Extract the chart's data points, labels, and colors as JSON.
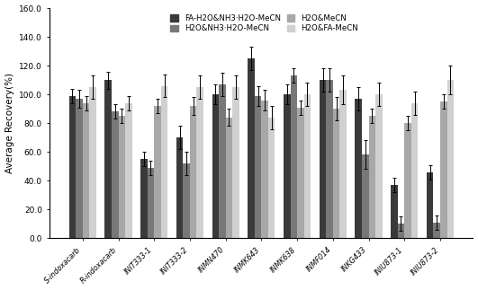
{
  "categories": [
    "S-indoxacarb",
    "R-indoxacarb",
    "INIT333-1",
    "INIT333-2",
    "INMN470",
    "INMK643",
    "INMK638",
    "INMF014",
    "INKG433",
    "INIU873-1",
    "INIU873-2"
  ],
  "series_labels": [
    "FA-H2O&NH3·H2O-MeCN",
    "H2O&NH3·H2O-MeCN",
    "H2O&MeCN",
    "H2O&FA-MeCN"
  ],
  "colors": [
    "#3a3a3a",
    "#787878",
    "#a8a8a8",
    "#d0d0d0"
  ],
  "bar_values": [
    [
      99,
      110,
      55,
      70,
      100,
      125,
      100,
      110,
      97,
      37,
      46
    ],
    [
      97,
      88,
      49,
      52,
      107,
      99,
      113,
      110,
      58,
      10,
      11
    ],
    [
      94,
      85,
      92,
      92,
      84,
      96,
      91,
      90,
      85,
      80,
      95
    ],
    [
      105,
      94,
      106,
      105,
      105,
      84,
      100,
      103,
      100,
      94,
      110
    ]
  ],
  "error_values": [
    [
      5,
      6,
      5,
      8,
      7,
      8,
      7,
      8,
      8,
      5,
      5
    ],
    [
      6,
      5,
      5,
      8,
      8,
      7,
      5,
      8,
      10,
      5,
      5
    ],
    [
      5,
      5,
      5,
      6,
      6,
      7,
      5,
      8,
      5,
      5,
      5
    ],
    [
      8,
      5,
      8,
      8,
      8,
      8,
      8,
      10,
      8,
      8,
      10
    ]
  ],
  "ylim": [
    0,
    160
  ],
  "yticks": [
    0.0,
    20.0,
    40.0,
    60.0,
    80.0,
    100.0,
    120.0,
    140.0,
    160.0
  ],
  "ylabel": "Average Recovery(%)",
  "bar_width": 0.19,
  "figsize": [
    5.31,
    3.23
  ],
  "dpi": 100
}
